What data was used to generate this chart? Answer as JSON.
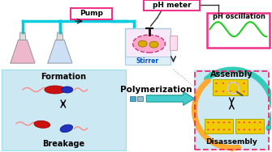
{
  "bg_color": "#ffffff",
  "light_blue_bg": "#cce8f2",
  "pink_box_color": "#ee3388",
  "pink_bg": "#ffbbdd",
  "reactor_bg": "#ffccee",
  "yellow_block": "#eecc00",
  "yellow_dot": "#ddaa00",
  "cyan_tube": "#00ccdd",
  "teal_arc": "#44ccbb",
  "orange_arc": "#ffaa33",
  "pump_label": "Pump",
  "stirrer_label": "Stirrer",
  "ph_meter_label": "pH meter",
  "ph_osc_label": "pH oscillation",
  "formation_label": "Formation",
  "breakage_label": "Breakage",
  "polymerization_label": "Polymerization",
  "assembly_label": "Assembly",
  "disassembly_label": "Disassembly",
  "figsize": [
    3.35,
    1.88
  ],
  "dpi": 100
}
